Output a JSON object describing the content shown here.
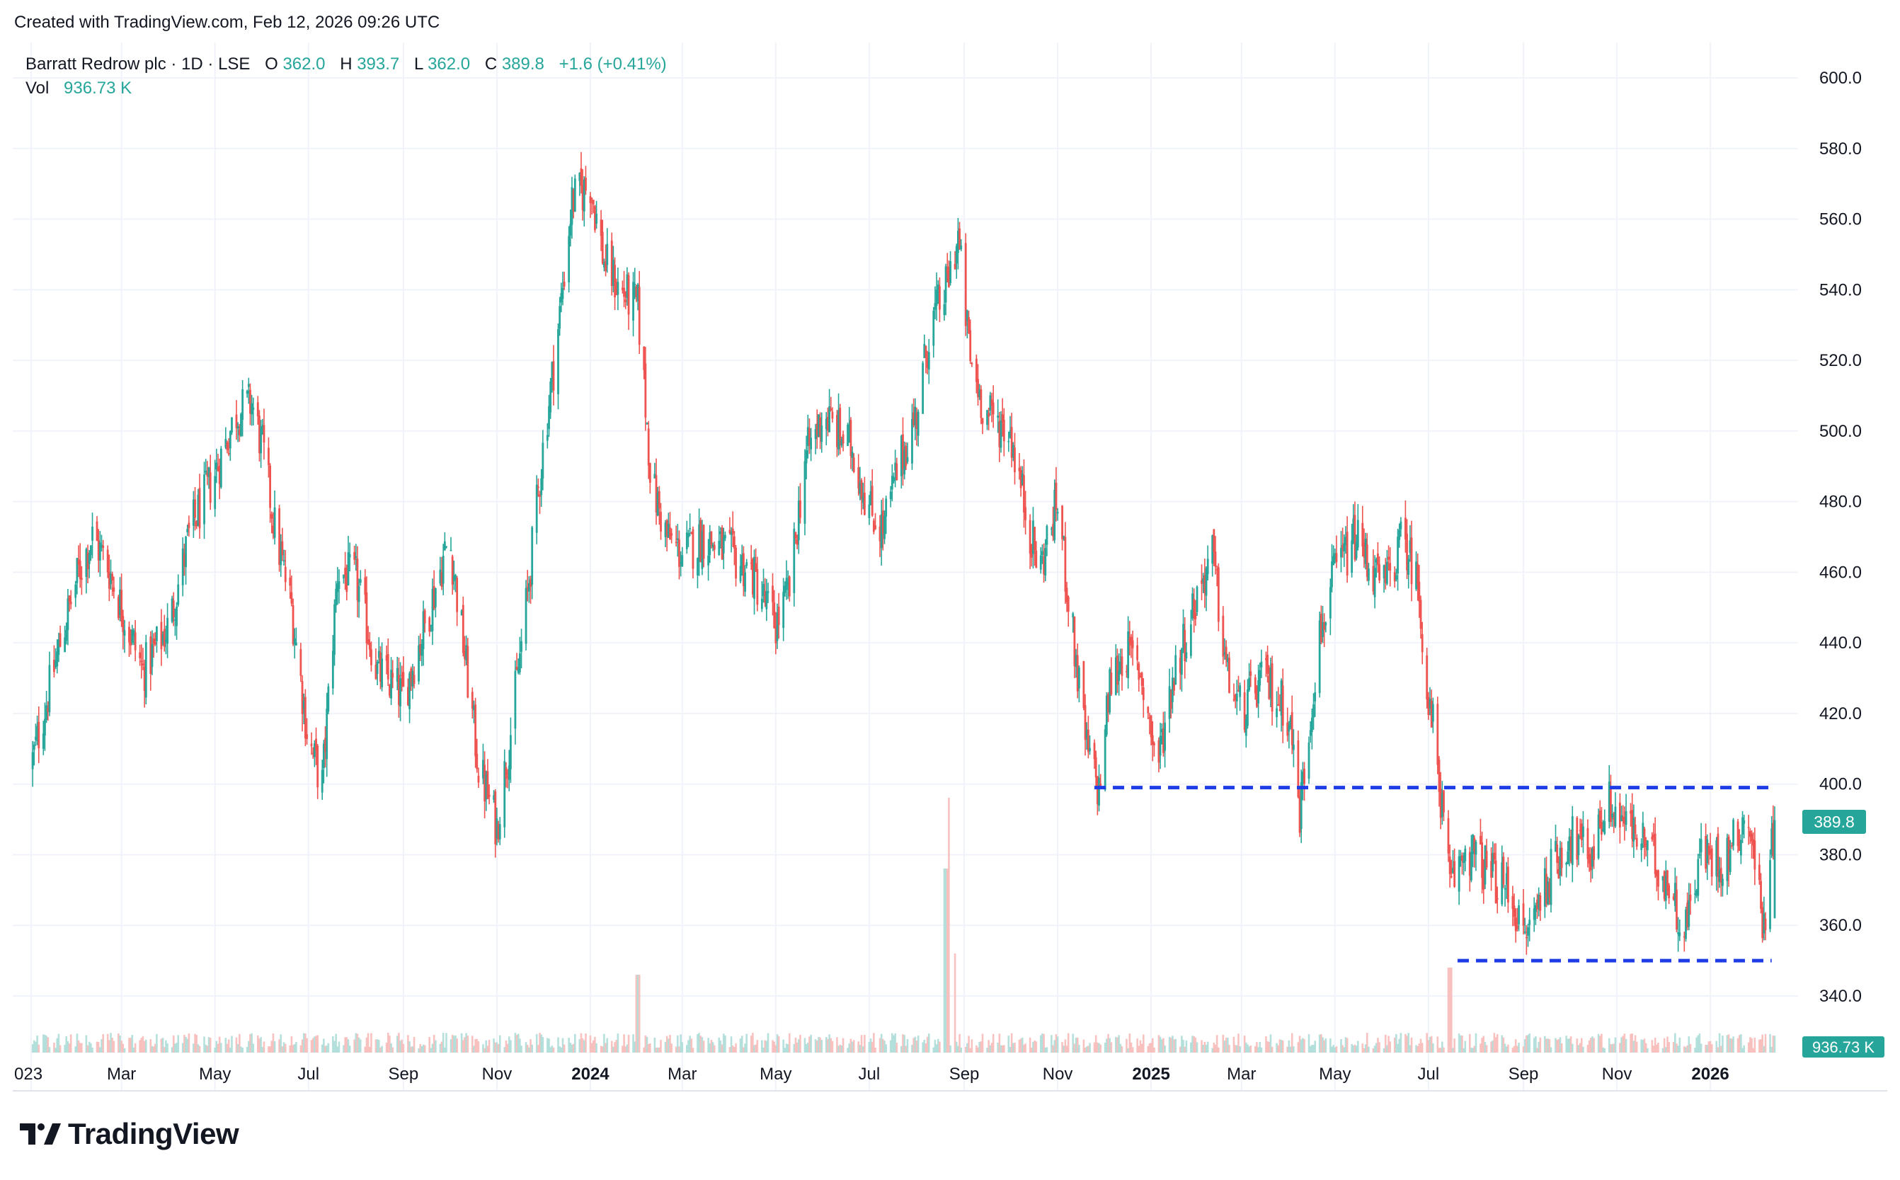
{
  "header": {
    "created_with": "Created with TradingView.com, Feb 12, 2026 09:26 UTC"
  },
  "legend": {
    "symbol": "Barratt Redrow plc · 1D · LSE",
    "o_label": "O",
    "o_value": "362.0",
    "h_label": "H",
    "h_value": "393.7",
    "l_label": "L",
    "l_value": "362.0",
    "c_label": "C",
    "c_value": "389.8",
    "change": "+1.6 (+0.41%)",
    "vol_label": "Vol",
    "vol_value": "936.73 K"
  },
  "price_axis": {
    "ticks": [
      "600.0",
      "580.0",
      "560.0",
      "540.0",
      "520.0",
      "500.0",
      "480.0",
      "460.0",
      "440.0",
      "420.0",
      "400.0",
      "380.0",
      "360.0",
      "340.0"
    ],
    "last_price_label": "389.8",
    "last_volume_label": "936.73 K"
  },
  "time_axis": {
    "labels": [
      "023",
      "Mar",
      "May",
      "Jul",
      "Sep",
      "Nov",
      "2024",
      "Mar",
      "May",
      "Jul",
      "Sep",
      "Nov",
      "2025",
      "Mar",
      "May",
      "Jul",
      "Sep",
      "Nov",
      "2026"
    ],
    "bold": [
      "2024",
      "2025",
      "2026"
    ]
  },
  "colors": {
    "up": "#26a69a",
    "down": "#ef5350",
    "line": "#1f3de6",
    "grid": "#f0f3fa",
    "last_price_bg": "#26a69a"
  },
  "chart_data": {
    "type": "candlestick",
    "title": "Barratt Redrow plc · 1D · LSE",
    "ylim": [
      335,
      610
    ],
    "y_ticks": [
      340,
      360,
      380,
      400,
      420,
      440,
      460,
      480,
      500,
      520,
      540,
      560,
      580,
      600
    ],
    "x_labels": [
      "023",
      "Mar",
      "May",
      "Jul",
      "Sep",
      "Nov",
      "2024",
      "Mar",
      "May",
      "Jul",
      "Sep",
      "Nov",
      "2025",
      "Mar",
      "May",
      "Jul",
      "Sep",
      "Nov",
      "2026"
    ],
    "approx_close_path": [
      [
        "2023-01",
        405
      ],
      [
        "2023-01-20",
        440
      ],
      [
        "2023-02",
        460
      ],
      [
        "2023-02-10",
        470
      ],
      [
        "2023-02-20",
        462
      ],
      [
        "2023-03-01",
        450
      ],
      [
        "2023-03-15",
        432
      ],
      [
        "2023-04-01",
        445
      ],
      [
        "2023-04-15",
        472
      ],
      [
        "2023-05-01",
        488
      ],
      [
        "2023-05-15",
        505
      ],
      [
        "2023-05-25",
        508
      ],
      [
        "2023-06-01",
        495
      ],
      [
        "2023-06-10",
        470
      ],
      [
        "2023-06-20",
        450
      ],
      [
        "2023-07-01",
        412
      ],
      [
        "2023-07-10",
        400
      ],
      [
        "2023-07-20",
        460
      ],
      [
        "2023-08-01",
        458
      ],
      [
        "2023-08-15",
        432
      ],
      [
        "2023-09-01",
        425
      ],
      [
        "2023-09-15",
        445
      ],
      [
        "2023-10-01",
        470
      ],
      [
        "2023-10-10",
        440
      ],
      [
        "2023-10-20",
        405
      ],
      [
        "2023-11-01",
        388
      ],
      [
        "2023-11-10",
        415
      ],
      [
        "2023-11-20",
        450
      ],
      [
        "2023-12-01",
        495
      ],
      [
        "2023-12-10",
        525
      ],
      [
        "2023-12-20",
        565
      ],
      [
        "2024-01-01",
        570
      ],
      [
        "2024-01-10",
        548
      ],
      [
        "2024-01-20",
        540
      ],
      [
        "2024-02-01",
        535
      ],
      [
        "2024-02-10",
        485
      ],
      [
        "2024-02-20",
        470
      ],
      [
        "2024-03-01",
        465
      ],
      [
        "2024-03-15",
        470
      ],
      [
        "2024-04-01",
        465
      ],
      [
        "2024-04-15",
        460
      ],
      [
        "2024-05-01",
        445
      ],
      [
        "2024-05-10",
        455
      ],
      [
        "2024-05-20",
        492
      ],
      [
        "2024-06-01",
        505
      ],
      [
        "2024-06-10",
        500
      ],
      [
        "2024-06-20",
        495
      ],
      [
        "2024-07-01",
        478
      ],
      [
        "2024-07-10",
        472
      ],
      [
        "2024-07-20",
        490
      ],
      [
        "2024-08-01",
        505
      ],
      [
        "2024-08-10",
        530
      ],
      [
        "2024-08-20",
        540
      ],
      [
        "2024-08-28",
        555
      ],
      [
        "2024-09-05",
        520
      ],
      [
        "2024-09-15",
        505
      ],
      [
        "2024-10-01",
        500
      ],
      [
        "2024-10-10",
        480
      ],
      [
        "2024-10-20",
        460
      ],
      [
        "2024-11-01",
        480
      ],
      [
        "2024-11-10",
        445
      ],
      [
        "2024-11-20",
        410
      ],
      [
        "2024-11-28",
        398
      ],
      [
        "2024-12-05",
        428
      ],
      [
        "2024-12-15",
        438
      ],
      [
        "2024-12-25",
        432
      ],
      [
        "2025-01-05",
        405
      ],
      [
        "2025-01-15",
        430
      ],
      [
        "2025-02-01",
        455
      ],
      [
        "2025-02-10",
        465
      ],
      [
        "2025-02-20",
        430
      ],
      [
        "2025-03-01",
        420
      ],
      [
        "2025-03-15",
        430
      ],
      [
        "2025-04-01",
        420
      ],
      [
        "2025-04-08",
        392
      ],
      [
        "2025-04-20",
        440
      ],
      [
        "2025-05-01",
        460
      ],
      [
        "2025-05-15",
        470
      ],
      [
        "2025-06-01",
        455
      ],
      [
        "2025-06-15",
        470
      ],
      [
        "2025-06-25",
        455
      ],
      [
        "2025-07-01",
        420
      ],
      [
        "2025-07-05",
        415
      ],
      [
        "2025-07-15",
        370
      ],
      [
        "2025-07-25",
        382
      ],
      [
        "2025-08-10",
        375
      ],
      [
        "2025-08-25",
        368
      ],
      [
        "2025-09-01",
        355
      ],
      [
        "2025-09-15",
        372
      ],
      [
        "2025-10-01",
        385
      ],
      [
        "2025-10-15",
        380
      ],
      [
        "2025-10-25",
        395
      ],
      [
        "2025-11-05",
        390
      ],
      [
        "2025-11-20",
        382
      ],
      [
        "2025-12-05",
        372
      ],
      [
        "2025-12-15",
        358
      ],
      [
        "2025-12-25",
        380
      ],
      [
        "2026-01-10",
        378
      ],
      [
        "2026-01-25",
        392
      ],
      [
        "2026-02-05",
        360
      ],
      [
        "2026-02-12",
        389.8
      ]
    ],
    "volume_spike_dates": [
      "2024-02-01",
      "2024-08-20",
      "2024-08-25",
      "2025-07-15"
    ],
    "annotations": [
      {
        "type": "horizontal_dashed_line",
        "price": 399,
        "from": "2024-11-25",
        "to": "2026-02-12"
      },
      {
        "type": "horizontal_dashed_line",
        "price": 350,
        "from": "2025-07-20",
        "to": "2026-02-10"
      }
    ],
    "last": {
      "open": 362.0,
      "high": 393.7,
      "low": 362.0,
      "close": 389.8,
      "change": 1.6,
      "change_pct": 0.41,
      "volume": "936.73 K"
    },
    "grid": true
  }
}
